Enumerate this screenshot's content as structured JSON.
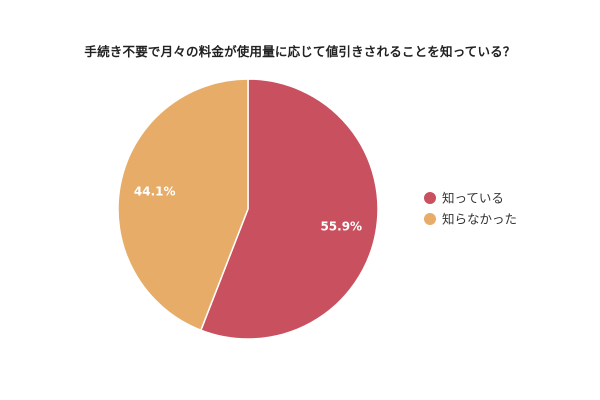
{
  "chart_data": {
    "type": "pie",
    "title": "手続き不要で月々の料金が使用量に応じて値引きされることを知っている？",
    "slices": [
      {
        "label": "知っている",
        "value": 55.9,
        "display": "55.9%",
        "color": "#c9505e"
      },
      {
        "label": "知らなかった",
        "value": 44.1,
        "display": "44.1%",
        "color": "#e6ac68"
      }
    ],
    "legend_position": "right"
  }
}
